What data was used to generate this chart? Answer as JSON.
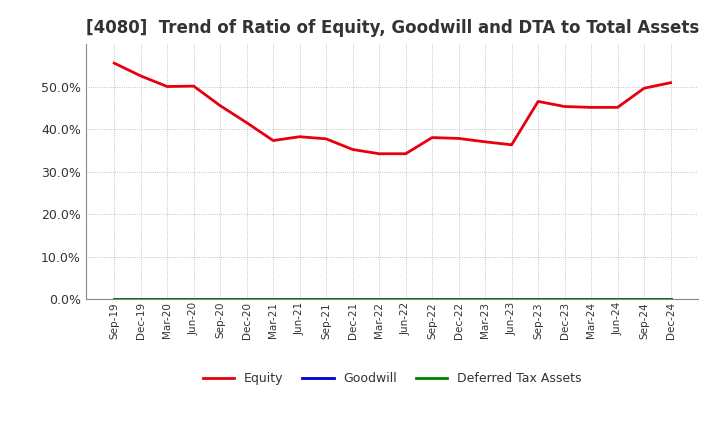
{
  "title": "[4080]  Trend of Ratio of Equity, Goodwill and DTA to Total Assets",
  "x_labels": [
    "Sep-19",
    "Dec-19",
    "Mar-20",
    "Jun-20",
    "Sep-20",
    "Dec-20",
    "Mar-21",
    "Jun-21",
    "Sep-21",
    "Dec-21",
    "Mar-22",
    "Jun-22",
    "Sep-22",
    "Dec-22",
    "Mar-23",
    "Jun-23",
    "Sep-23",
    "Dec-23",
    "Mar-24",
    "Jun-24",
    "Sep-24",
    "Dec-24"
  ],
  "equity": [
    0.555,
    0.525,
    0.5,
    0.501,
    0.455,
    0.415,
    0.373,
    0.382,
    0.377,
    0.352,
    0.342,
    0.342,
    0.38,
    0.378,
    0.37,
    0.363,
    0.465,
    0.453,
    0.451,
    0.451,
    0.496,
    0.509
  ],
  "goodwill": [
    0,
    0,
    0,
    0,
    0,
    0,
    0,
    0,
    0,
    0,
    0,
    0,
    0,
    0,
    0,
    0,
    0,
    0,
    0,
    0,
    0,
    0
  ],
  "dta": [
    0,
    0,
    0,
    0,
    0,
    0,
    0,
    0,
    0,
    0,
    0,
    0,
    0,
    0,
    0,
    0,
    0,
    0,
    0,
    0,
    0,
    0
  ],
  "equity_color": "#e8000d",
  "goodwill_color": "#0000cc",
  "dta_color": "#008000",
  "ylim": [
    0.0,
    0.6
  ],
  "yticks": [
    0.0,
    0.1,
    0.2,
    0.3,
    0.4,
    0.5
  ],
  "background_color": "#ffffff",
  "plot_bg_color": "#ffffff",
  "grid_color": "#aaaaaa",
  "title_fontsize": 12,
  "title_color": "#333333",
  "tick_label_color": "#333333",
  "legend_labels": [
    "Equity",
    "Goodwill",
    "Deferred Tax Assets"
  ]
}
